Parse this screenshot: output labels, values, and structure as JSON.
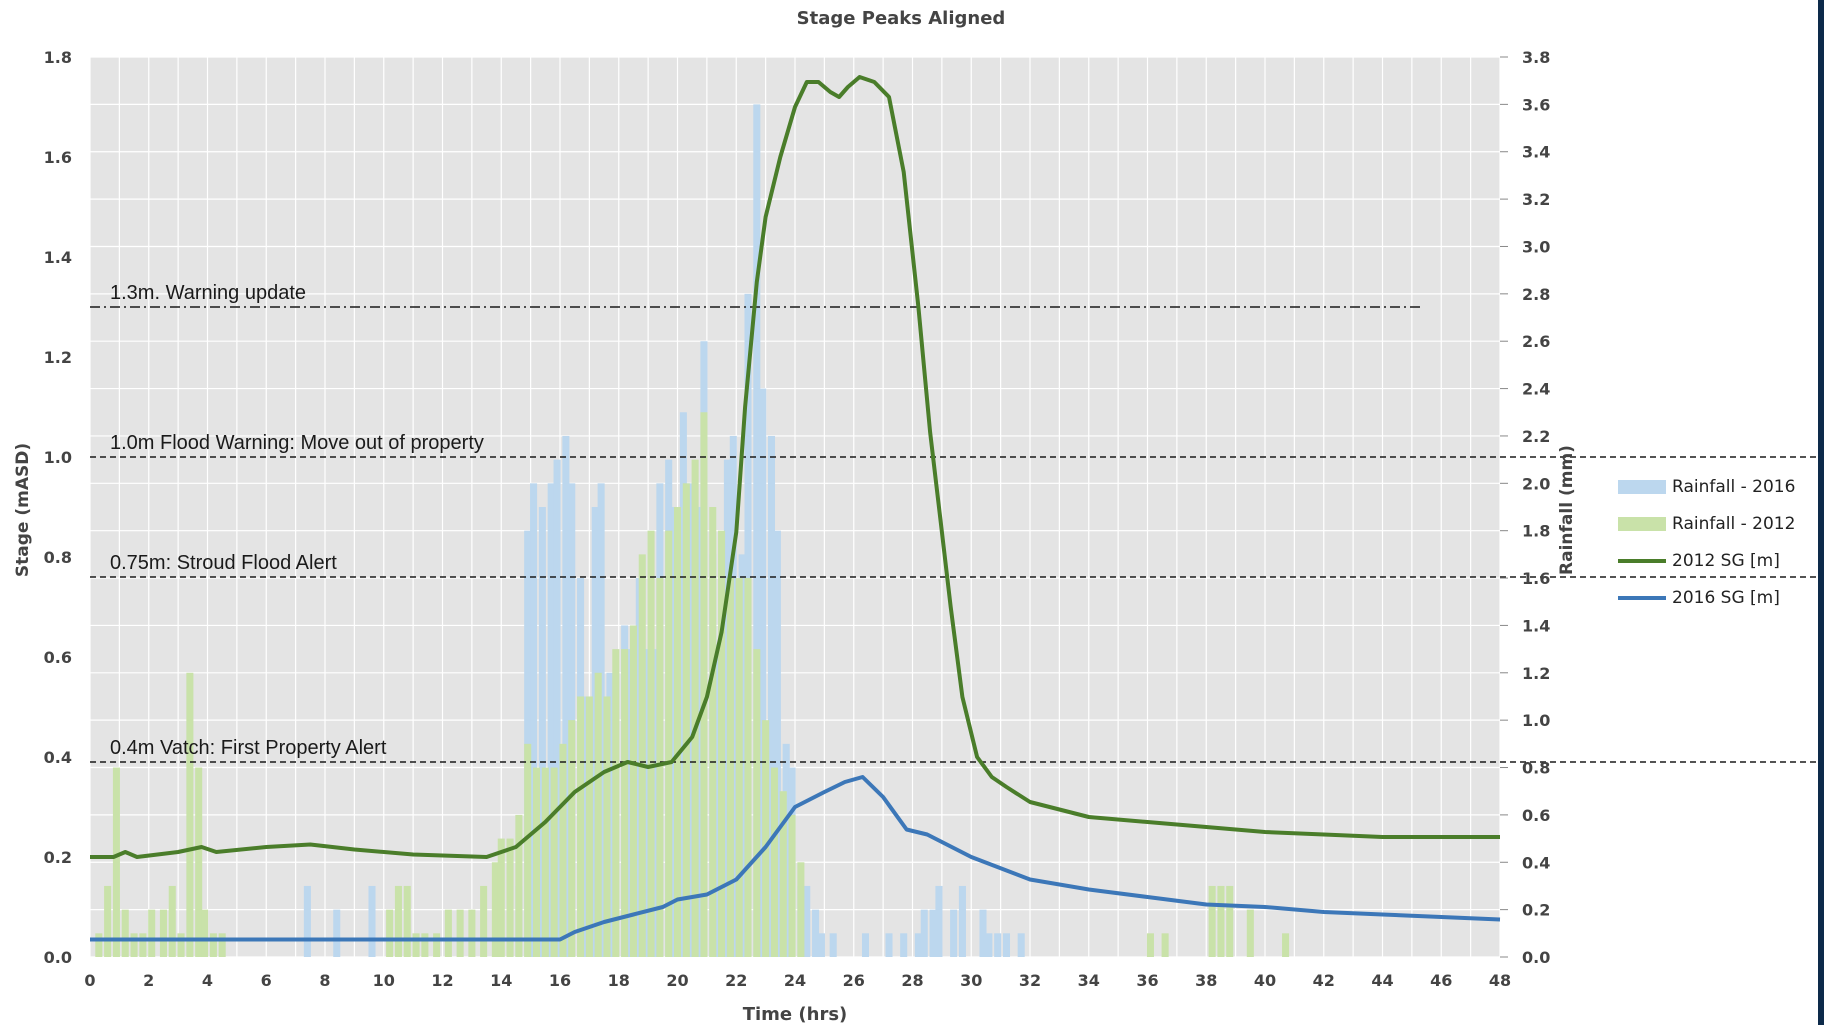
{
  "colors": {
    "plot_bg": "#e4e4e4",
    "grid": "#ffffff",
    "rain2016": "#bcd7ee",
    "rain2012": "#c9e2a9",
    "sg2012": "#4a7d2a",
    "sg2016": "#3c77b8",
    "threshold": "#1a1a1a",
    "frame": "#0d2a4a"
  },
  "chart_data": {
    "type": "bar+line",
    "title": "Stage Peaks Aligned",
    "xlabel": "Time (hrs)",
    "ylabel": "Stage (mASD)",
    "y2label": "Rainfall (mm)",
    "xlim": [
      0,
      48
    ],
    "ylim": [
      0,
      1.8
    ],
    "y2lim": [
      0,
      3.8
    ],
    "x_ticks": [
      "0",
      "2",
      "4",
      "6",
      "8",
      "10",
      "12",
      "14",
      "16",
      "18",
      "20",
      "22",
      "24",
      "26",
      "28",
      "30",
      "32",
      "34",
      "36",
      "38",
      "40",
      "42",
      "44",
      "46",
      "48"
    ],
    "y_ticks": [
      "0.0",
      "0.2",
      "0.4",
      "0.6",
      "0.8",
      "1.0",
      "1.2",
      "1.4",
      "1.6",
      "1.8"
    ],
    "y2_ticks": [
      "0.0",
      "0.2",
      "0.4",
      "0.6",
      "0.8",
      "1.0",
      "1.2",
      "1.4",
      "1.6",
      "1.8",
      "2.0",
      "2.2",
      "2.4",
      "2.6",
      "2.8",
      "3.0",
      "3.2",
      "3.4",
      "3.6",
      "3.8"
    ],
    "grid": true,
    "legend_position": "right",
    "legend": [
      {
        "label": "Rainfall - 2016",
        "kind": "bar",
        "color": "#bcd7ee"
      },
      {
        "label": "Rainfall - 2012",
        "kind": "bar",
        "color": "#c9e2a9"
      },
      {
        "label": "2012 SG [m]",
        "kind": "line",
        "color": "#4a7d2a"
      },
      {
        "label": "2016 SG [m]",
        "kind": "line",
        "color": "#3c77b8"
      }
    ],
    "thresholds": [
      {
        "value": 1.3,
        "label": "1.3m. Warning update",
        "x_end": 45.3,
        "style": "dashdot"
      },
      {
        "value": 1.0,
        "label": "1.0m Flood Warning: Move out of property",
        "x_end": 60,
        "style": "dash"
      },
      {
        "value": 0.76,
        "label": "0.75m: Stroud Flood Alert",
        "x_end": 60,
        "style": "dash"
      },
      {
        "value": 0.39,
        "label": "0.4m Vatch: First Property Alert",
        "x_end": 60,
        "style": "dash"
      }
    ],
    "series": [
      {
        "name": "2012 SG [m]",
        "axis": "left",
        "x": [
          0,
          0.8,
          1.2,
          1.6,
          3,
          3.8,
          4.3,
          6,
          7.5,
          9,
          11,
          13.5,
          14.5,
          15.5,
          16.5,
          17.5,
          18.3,
          19,
          19.8,
          20.5,
          21,
          21.5,
          22,
          22.3,
          22.7,
          23,
          23.5,
          24,
          24.4,
          24.8,
          25.2,
          25.5,
          25.8,
          26.2,
          26.7,
          27.2,
          27.7,
          28.2,
          28.6,
          29,
          29.3,
          29.7,
          30.2,
          30.7,
          31.2,
          32,
          34,
          36,
          38,
          40,
          42,
          44,
          46,
          48
        ],
        "values": [
          0.2,
          0.2,
          0.21,
          0.2,
          0.21,
          0.22,
          0.21,
          0.22,
          0.225,
          0.215,
          0.205,
          0.2,
          0.22,
          0.27,
          0.33,
          0.37,
          0.39,
          0.38,
          0.39,
          0.44,
          0.52,
          0.65,
          0.85,
          1.1,
          1.35,
          1.48,
          1.6,
          1.7,
          1.75,
          1.75,
          1.73,
          1.72,
          1.74,
          1.76,
          1.75,
          1.72,
          1.57,
          1.3,
          1.05,
          0.85,
          0.7,
          0.52,
          0.4,
          0.36,
          0.34,
          0.31,
          0.28,
          0.27,
          0.26,
          0.25,
          0.245,
          0.24,
          0.24,
          0.24
        ]
      },
      {
        "name": "2016 SG [m]",
        "axis": "left",
        "x": [
          0,
          4,
          8,
          12,
          16,
          16.5,
          17.5,
          18.5,
          19.5,
          20,
          21,
          22,
          23,
          24,
          25,
          25.7,
          26.3,
          27,
          27.8,
          28.5,
          30,
          32,
          34,
          36,
          38,
          40,
          42,
          44,
          46,
          48
        ],
        "values": [
          0.035,
          0.035,
          0.035,
          0.035,
          0.035,
          0.05,
          0.07,
          0.085,
          0.1,
          0.115,
          0.125,
          0.155,
          0.22,
          0.3,
          0.33,
          0.35,
          0.36,
          0.32,
          0.255,
          0.245,
          0.2,
          0.155,
          0.135,
          0.12,
          0.105,
          0.1,
          0.09,
          0.085,
          0.08,
          0.075
        ]
      },
      {
        "name": "Rainfall - 2016",
        "axis": "right",
        "kind": "bar",
        "x": [
          7.4,
          8.4,
          9.6,
          14.6,
          14.9,
          15.1,
          15.4,
          15.7,
          15.9,
          16.2,
          16.4,
          16.7,
          16.9,
          17.2,
          17.4,
          17.7,
          17.9,
          18.2,
          18.4,
          18.7,
          18.9,
          19.2,
          19.4,
          19.7,
          19.9,
          20.2,
          20.4,
          20.7,
          20.9,
          21.2,
          21.4,
          21.7,
          21.9,
          22.2,
          22.4,
          22.7,
          22.9,
          23.2,
          23.4,
          23.7,
          23.9,
          24.2,
          24.4,
          24.7,
          24.9,
          25.3,
          26.4,
          27.2,
          27.7,
          28.2,
          28.4,
          28.7,
          28.9,
          29.4,
          29.7,
          30.4,
          30.6,
          30.9,
          31.2,
          31.7
        ],
        "values": [
          0.3,
          0.2,
          0.3,
          0.3,
          1.8,
          2.0,
          1.9,
          2.0,
          2.1,
          2.2,
          2.0,
          1.6,
          1.1,
          1.9,
          2.0,
          1.2,
          1.2,
          1.4,
          1.3,
          1.6,
          1.3,
          1.3,
          2.0,
          2.1,
          1.9,
          2.3,
          2.0,
          1.9,
          2.6,
          1.7,
          1.3,
          2.1,
          2.2,
          1.7,
          2.8,
          3.6,
          2.4,
          2.2,
          1.8,
          0.9,
          0.8,
          0.3,
          0.3,
          0.2,
          0.1,
          0.1,
          0.1,
          0.1,
          0.1,
          0.1,
          0.2,
          0.2,
          0.3,
          0.2,
          0.3,
          0.2,
          0.1,
          0.1,
          0.1,
          0.1
        ]
      },
      {
        "name": "Rainfall - 2012",
        "axis": "right",
        "kind": "bar",
        "x": [
          0.3,
          0.6,
          0.9,
          1.2,
          1.5,
          1.8,
          2.1,
          2.5,
          2.8,
          3.1,
          3.4,
          3.7,
          3.9,
          4.2,
          4.5,
          10.2,
          10.5,
          10.8,
          11.1,
          11.4,
          11.8,
          12.2,
          12.6,
          13.0,
          13.4,
          13.8,
          14.0,
          14.3,
          14.6,
          14.9,
          15.2,
          15.5,
          15.8,
          16.1,
          16.4,
          16.7,
          17.0,
          17.3,
          17.6,
          17.9,
          18.2,
          18.5,
          18.8,
          19.1,
          19.4,
          19.7,
          20.0,
          20.3,
          20.6,
          20.9,
          21.2,
          21.5,
          21.8,
          22.1,
          22.4,
          22.7,
          23.0,
          23.3,
          23.6,
          23.9,
          24.2,
          36.1,
          36.6,
          38.2,
          38.5,
          38.8,
          39.5,
          40.7
        ],
        "values": [
          0.1,
          0.3,
          0.8,
          0.2,
          0.1,
          0.1,
          0.2,
          0.2,
          0.3,
          0.1,
          1.2,
          0.8,
          0.2,
          0.1,
          0.1,
          0.2,
          0.3,
          0.3,
          0.1,
          0.1,
          0.1,
          0.2,
          0.2,
          0.2,
          0.3,
          0.4,
          0.5,
          0.5,
          0.6,
          0.9,
          0.8,
          0.8,
          0.8,
          0.9,
          1.0,
          1.1,
          1.1,
          1.2,
          1.1,
          1.3,
          1.3,
          1.4,
          1.7,
          1.8,
          1.6,
          1.8,
          1.9,
          2.0,
          2.1,
          2.3,
          1.9,
          1.8,
          1.6,
          1.6,
          1.6,
          1.3,
          1.0,
          0.8,
          0.7,
          0.6,
          0.4,
          0.1,
          0.1,
          0.3,
          0.3,
          0.3,
          0.2,
          0.1
        ]
      }
    ]
  }
}
